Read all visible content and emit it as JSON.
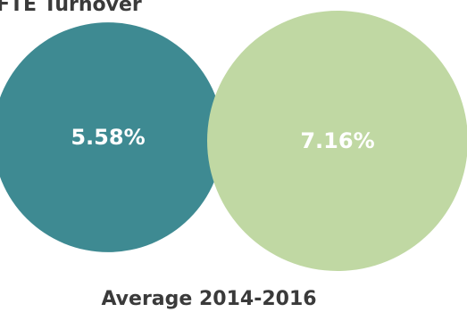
{
  "chart_data": {
    "type": "bubble",
    "title": "FTE Turnover",
    "caption": "Average 2014-2016",
    "values": [
      5.58,
      7.16
    ],
    "labels": [
      "5.58%",
      "7.16%"
    ],
    "colors": [
      "#3e8a92",
      "#c0d8a3"
    ]
  }
}
